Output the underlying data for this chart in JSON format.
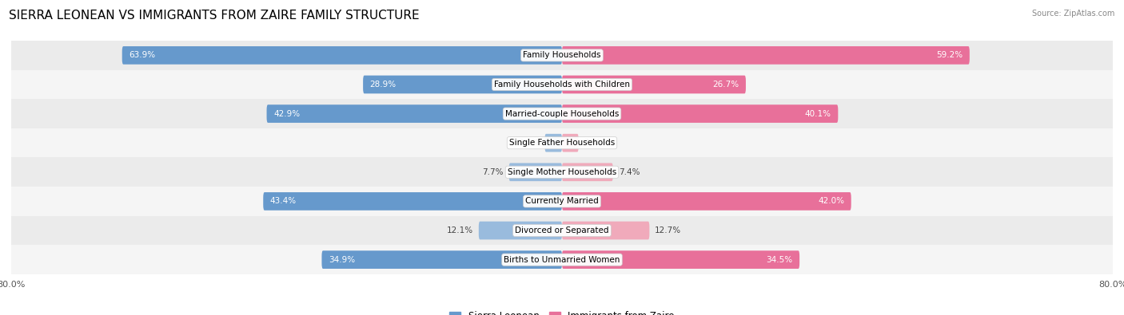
{
  "title": "SIERRA LEONEAN VS IMMIGRANTS FROM ZAIRE FAMILY STRUCTURE",
  "source": "Source: ZipAtlas.com",
  "categories": [
    "Family Households",
    "Family Households with Children",
    "Married-couple Households",
    "Single Father Households",
    "Single Mother Households",
    "Currently Married",
    "Divorced or Separated",
    "Births to Unmarried Women"
  ],
  "sierra_leonean": [
    63.9,
    28.9,
    42.9,
    2.5,
    7.7,
    43.4,
    12.1,
    34.9
  ],
  "immigrants_zaire": [
    59.2,
    26.7,
    40.1,
    2.4,
    7.4,
    42.0,
    12.7,
    34.5
  ],
  "sierra_color_dark": "#6699CC",
  "sierra_color_light": "#99BBDD",
  "zaire_color_dark": "#E8709A",
  "zaire_color_light": "#F0AABB",
  "max_val": 80.0,
  "bar_height": 0.62,
  "row_colors": [
    "#EBEBEB",
    "#F5F5F5"
  ],
  "title_fontsize": 11,
  "label_fontsize": 7.5,
  "legend_fontsize": 8.5,
  "axis_label_fontsize": 8
}
